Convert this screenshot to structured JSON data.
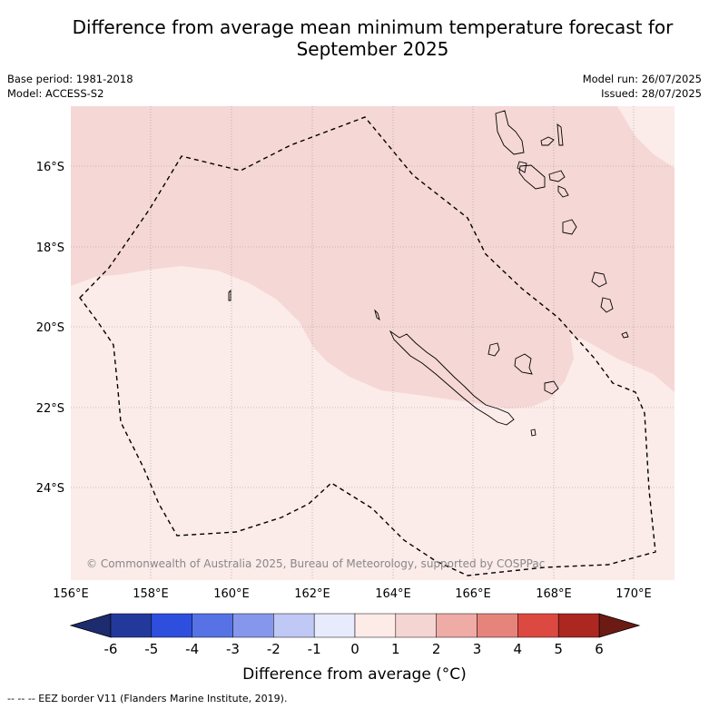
{
  "title_line1": "Difference from average mean minimum temperature forecast for",
  "title_line2": "September 2025",
  "base_period": "Base period: 1981-2018",
  "model": "Model: ACCESS-S2",
  "model_run": "Model run: 26/07/2025",
  "issued": "Issued: 28/07/2025",
  "copyright": "© Commonwealth of Australia 2025, Bureau of Meteorology, supported by COSPPac",
  "footnote": "--  --  -- EEZ border V11 (Flanders Marine Institute, 2019).",
  "map": {
    "lon_ticks": [
      "156°E",
      "158°E",
      "160°E",
      "162°E",
      "164°E",
      "166°E",
      "168°E",
      "170°E"
    ],
    "lat_ticks": [
      "16°S",
      "18°S",
      "20°S",
      "22°S",
      "24°S"
    ],
    "shading_color_0_1": "#fbebe9",
    "shading_color_1_2": "#f5d7d5"
  },
  "colorbar": {
    "label": "Difference from average (°C)",
    "ticks": [
      "-6",
      "-5",
      "-4",
      "-3",
      "-2",
      "-1",
      "0",
      "1",
      "2",
      "3",
      "4",
      "5",
      "6"
    ],
    "colors": [
      "#22399b",
      "#2e4fde",
      "#5672e5",
      "#8597ec",
      "#c0c8f5",
      "#e8ebfb",
      "#fdebe8",
      "#f5d5d2",
      "#efaba6",
      "#e6847c",
      "#dc4940",
      "#ab2720"
    ],
    "under_color": "#1c2c6e",
    "over_color": "#6c1b14"
  }
}
